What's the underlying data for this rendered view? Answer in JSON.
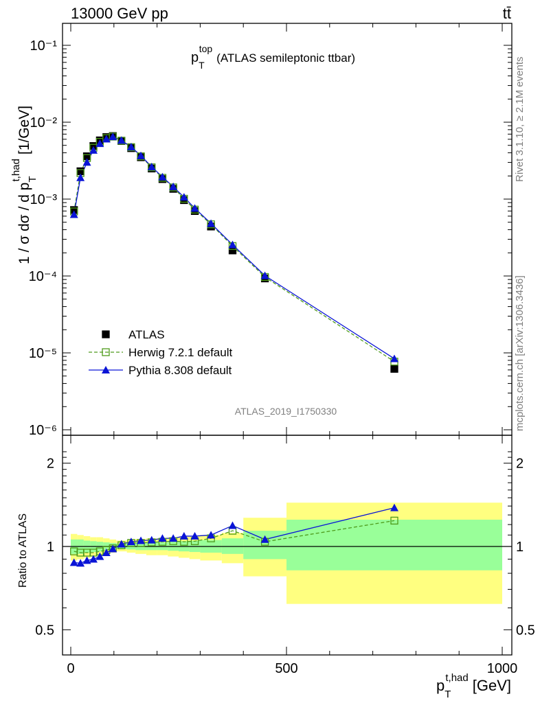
{
  "header": {
    "left": "13000 GeV pp",
    "right": "tt̄"
  },
  "side_labels": {
    "rivet": "Rivet 3.1.10, ≥ 2.1M events",
    "mcplots": "mcplots.cern.ch [arXiv:1306.3436]"
  },
  "watermark": "ATLAS_2019_I1750330",
  "colors": {
    "atlas": "#000000",
    "herwig": "#4d9a1a",
    "pythia": "#0a14d6",
    "band_outer": "#ffff80",
    "band_inner": "#99ff99"
  },
  "chart_data": {
    "type": "scatter",
    "title": "p_T^top (ATLAS semileptonic ttbar)",
    "title_main": "p",
    "title_sub": "T",
    "title_sup": "top",
    "title_rest": "(ATLAS semileptonic ttbar)",
    "xlabel": "p_T^t,had [GeV]",
    "xlabel_main": "p",
    "xlabel_sub": "T",
    "xlabel_sup": "t,had",
    "xlabel_unit": "[GeV]",
    "ylabel": "1 / σ dσ / d p_T^t,had [1/GeV]",
    "ylabel_main": "1 / σ dσ / d p",
    "ylabel_sub": "T",
    "ylabel_sup": "t,had",
    "ylabel_unit": "[1/GeV]",
    "ratio_ylabel": "Ratio to ATLAS",
    "xlim": [
      -25,
      1025
    ],
    "ylim": [
      8e-07,
      0.2
    ],
    "yscale": "log",
    "ratio_ylim": [
      0.35,
      2.3
    ],
    "x_ticks": [
      "0",
      "500",
      "1000"
    ],
    "y_ticks": [
      "10⁻¹",
      "10⁻²",
      "10⁻³",
      "10⁻⁴",
      "10⁻⁵",
      "10⁻⁶"
    ],
    "ratio_ticks": [
      "2",
      "1",
      "0.5"
    ],
    "legend_position": "bottom-left",
    "x": [
      7.5,
      22.5,
      37.5,
      52.5,
      67.5,
      82.5,
      97.5,
      117.5,
      140,
      162.5,
      187.5,
      212.5,
      237.5,
      262.5,
      287.5,
      325,
      375,
      450,
      750
    ],
    "series": [
      {
        "name": "ATLAS",
        "values": [
          0.00072,
          0.0023,
          0.0036,
          0.0049,
          0.0058,
          0.0064,
          0.0066,
          0.0057,
          0.0046,
          0.0035,
          0.0025,
          0.00182,
          0.00136,
          0.00097,
          0.0007,
          0.00044,
          0.000215,
          9.3e-05,
          6.2e-06
        ]
      },
      {
        "name": "Herwig 7.2.1 default",
        "values": [
          0.00069,
          0.00218,
          0.00342,
          0.00465,
          0.00555,
          0.0062,
          0.0065,
          0.00575,
          0.00474,
          0.0036,
          0.00259,
          0.00189,
          0.00142,
          0.00101,
          0.00073,
          0.00047,
          0.000245,
          9.7e-05,
          7.7e-06
        ]
      },
      {
        "name": "Pythia 8.308 default",
        "values": [
          0.00063,
          0.0019,
          0.00301,
          0.00432,
          0.00528,
          0.00605,
          0.00647,
          0.00581,
          0.00477,
          0.00367,
          0.00263,
          0.00194,
          0.00145,
          0.00106,
          0.00076,
          0.000482,
          0.000255,
          0.000101,
          8.4e-06
        ]
      }
    ],
    "ratio": {
      "herwig": [
        0.96,
        0.95,
        0.95,
        0.95,
        0.96,
        0.97,
        0.985,
        1.01,
        1.03,
        1.03,
        1.035,
        1.04,
        1.045,
        1.04,
        1.045,
        1.07,
        1.14,
        1.04,
        1.24
      ],
      "pythia": [
        0.875,
        0.87,
        0.89,
        0.9,
        0.92,
        0.95,
        0.98,
        1.02,
        1.04,
        1.05,
        1.055,
        1.07,
        1.07,
        1.09,
        1.09,
        1.1,
        1.19,
        1.06,
        1.38
      ]
    },
    "bands": {
      "edges": [
        0,
        15,
        30,
        45,
        60,
        75,
        90,
        105,
        130,
        150,
        175,
        200,
        225,
        250,
        275,
        300,
        350,
        400,
        500,
        1000
      ],
      "inner": [
        [
          0.94,
          1.06
        ],
        [
          0.94,
          1.06
        ],
        [
          0.95,
          1.05
        ],
        [
          0.955,
          1.045
        ],
        [
          0.96,
          1.04
        ],
        [
          0.97,
          1.035
        ],
        [
          0.975,
          1.03
        ],
        [
          0.98,
          1.025
        ],
        [
          0.975,
          1.03
        ],
        [
          0.97,
          1.035
        ],
        [
          0.97,
          1.035
        ],
        [
          0.97,
          1.035
        ],
        [
          0.965,
          1.04
        ],
        [
          0.96,
          1.045
        ],
        [
          0.955,
          1.05
        ],
        [
          0.95,
          1.055
        ],
        [
          0.94,
          1.07
        ],
        [
          0.9,
          1.14
        ],
        [
          0.82,
          1.25
        ]
      ],
      "outer": [
        [
          0.89,
          1.11
        ],
        [
          0.9,
          1.1
        ],
        [
          0.91,
          1.09
        ],
        [
          0.92,
          1.08
        ],
        [
          0.93,
          1.08
        ],
        [
          0.94,
          1.07
        ],
        [
          0.95,
          1.06
        ],
        [
          0.96,
          1.05
        ],
        [
          0.95,
          1.055
        ],
        [
          0.94,
          1.065
        ],
        [
          0.93,
          1.07
        ],
        [
          0.93,
          1.07
        ],
        [
          0.92,
          1.08
        ],
        [
          0.91,
          1.085
        ],
        [
          0.9,
          1.09
        ],
        [
          0.89,
          1.1
        ],
        [
          0.87,
          1.12
        ],
        [
          0.78,
          1.27
        ],
        [
          0.62,
          1.44
        ]
      ]
    }
  }
}
